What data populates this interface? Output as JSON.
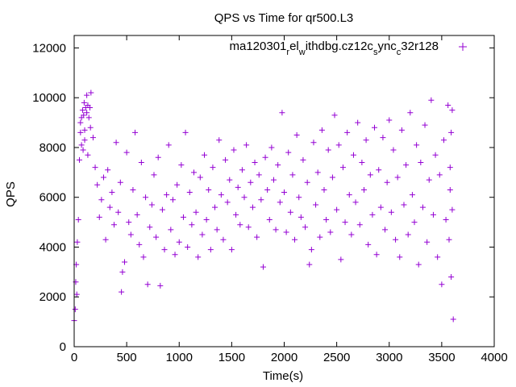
{
  "chart_data": {
    "type": "scatter",
    "title": "QPS vs Time for qr500.L3",
    "xlabel": "Time(s)",
    "ylabel": "QPS",
    "xlim": [
      0,
      4000
    ],
    "ylim": [
      0,
      12500
    ],
    "x_ticks": [
      0,
      500,
      1000,
      1500,
      2000,
      2500,
      3000,
      3500,
      4000
    ],
    "y_ticks": [
      0,
      2000,
      4000,
      6000,
      8000,
      10000,
      12000
    ],
    "grid": false,
    "legend_position": "top-right",
    "legend": {
      "label_base": "ma120301",
      "label_segments": [
        {
          "text": "r",
          "sub": true
        },
        {
          "text": "el",
          "sub": false
        },
        {
          "text": "w",
          "sub": true
        },
        {
          "text": "ithdbg.cz12c",
          "sub": false
        },
        {
          "text": "s",
          "sub": true
        },
        {
          "text": "ync",
          "sub": false
        },
        {
          "text": "c",
          "sub": true
        },
        {
          "text": "32r128",
          "sub": false
        }
      ]
    },
    "series_color": "#9400d3",
    "series": [
      {
        "marker": "+",
        "points": [
          [
            0,
            1050
          ],
          [
            10,
            1500
          ],
          [
            15,
            2600
          ],
          [
            20,
            3300
          ],
          [
            25,
            2100
          ],
          [
            30,
            4200
          ],
          [
            40,
            5100
          ],
          [
            50,
            7500
          ],
          [
            60,
            8600
          ],
          [
            70,
            9200
          ],
          [
            80,
            9500
          ],
          [
            90,
            9300
          ],
          [
            100,
            8700
          ],
          [
            110,
            9600
          ],
          [
            120,
            9400
          ],
          [
            130,
            9700
          ],
          [
            140,
            9200
          ],
          [
            150,
            9600
          ],
          [
            160,
            10200
          ],
          [
            120,
            10100
          ],
          [
            70,
            8100
          ],
          [
            85,
            7900
          ],
          [
            100,
            8300
          ],
          [
            130,
            7700
          ],
          [
            60,
            9000
          ],
          [
            95,
            9800
          ],
          [
            155,
            8800
          ],
          [
            180,
            8400
          ],
          [
            200,
            7200
          ],
          [
            220,
            6500
          ],
          [
            240,
            5200
          ],
          [
            260,
            5900
          ],
          [
            280,
            6800
          ],
          [
            300,
            4300
          ],
          [
            320,
            7100
          ],
          [
            340,
            5600
          ],
          [
            360,
            6200
          ],
          [
            380,
            4900
          ],
          [
            400,
            8200
          ],
          [
            420,
            5400
          ],
          [
            440,
            6600
          ],
          [
            450,
            2200
          ],
          [
            460,
            3000
          ],
          [
            480,
            3400
          ],
          [
            500,
            7800
          ],
          [
            520,
            5000
          ],
          [
            540,
            4500
          ],
          [
            560,
            6300
          ],
          [
            580,
            8600
          ],
          [
            600,
            5300
          ],
          [
            620,
            4100
          ],
          [
            640,
            7400
          ],
          [
            660,
            3600
          ],
          [
            680,
            6000
          ],
          [
            700,
            2500
          ],
          [
            720,
            4800
          ],
          [
            740,
            5700
          ],
          [
            760,
            6900
          ],
          [
            780,
            4400
          ],
          [
            800,
            7600
          ],
          [
            820,
            2450
          ],
          [
            840,
            5500
          ],
          [
            860,
            3900
          ],
          [
            880,
            6100
          ],
          [
            900,
            8100
          ],
          [
            920,
            4700
          ],
          [
            940,
            5900
          ],
          [
            960,
            3700
          ],
          [
            980,
            6500
          ],
          [
            1000,
            4200
          ],
          [
            1020,
            7300
          ],
          [
            1040,
            5200
          ],
          [
            1060,
            8600
          ],
          [
            1080,
            4000
          ],
          [
            1100,
            6200
          ],
          [
            1120,
            4900
          ],
          [
            1140,
            7000
          ],
          [
            1160,
            5400
          ],
          [
            1180,
            3600
          ],
          [
            1200,
            6800
          ],
          [
            1220,
            4500
          ],
          [
            1240,
            7700
          ],
          [
            1260,
            5100
          ],
          [
            1280,
            6300
          ],
          [
            1300,
            3900
          ],
          [
            1320,
            7200
          ],
          [
            1340,
            5600
          ],
          [
            1360,
            4700
          ],
          [
            1380,
            8300
          ],
          [
            1400,
            6100
          ],
          [
            1420,
            4300
          ],
          [
            1440,
            7500
          ],
          [
            1460,
            5800
          ],
          [
            1480,
            6700
          ],
          [
            1500,
            3900
          ],
          [
            1520,
            7900
          ],
          [
            1540,
            5300
          ],
          [
            1560,
            6400
          ],
          [
            1580,
            4900
          ],
          [
            1600,
            7100
          ],
          [
            1620,
            6000
          ],
          [
            1640,
            8100
          ],
          [
            1660,
            4800
          ],
          [
            1680,
            6600
          ],
          [
            1700,
            5600
          ],
          [
            1720,
            7400
          ],
          [
            1740,
            4400
          ],
          [
            1760,
            6900
          ],
          [
            1780,
            5900
          ],
          [
            1800,
            3200
          ],
          [
            1820,
            7600
          ],
          [
            1840,
            6300
          ],
          [
            1860,
            5100
          ],
          [
            1880,
            8000
          ],
          [
            1900,
            6700
          ],
          [
            1920,
            4700
          ],
          [
            1940,
            7300
          ],
          [
            1960,
            5800
          ],
          [
            1980,
            9400
          ],
          [
            2000,
            6200
          ],
          [
            2020,
            4600
          ],
          [
            2040,
            7800
          ],
          [
            2060,
            5400
          ],
          [
            2080,
            6900
          ],
          [
            2100,
            4300
          ],
          [
            2120,
            8500
          ],
          [
            2140,
            6000
          ],
          [
            2160,
            5200
          ],
          [
            2180,
            7500
          ],
          [
            2200,
            4800
          ],
          [
            2220,
            6600
          ],
          [
            2240,
            3300
          ],
          [
            2260,
            3900
          ],
          [
            2280,
            8200
          ],
          [
            2300,
            5700
          ],
          [
            2320,
            7000
          ],
          [
            2340,
            4400
          ],
          [
            2360,
            8700
          ],
          [
            2380,
            6300
          ],
          [
            2400,
            5100
          ],
          [
            2420,
            7900
          ],
          [
            2440,
            4600
          ],
          [
            2460,
            6800
          ],
          [
            2480,
            9300
          ],
          [
            2500,
            5500
          ],
          [
            2520,
            8100
          ],
          [
            2540,
            3500
          ],
          [
            2560,
            7200
          ],
          [
            2580,
            5000
          ],
          [
            2600,
            8600
          ],
          [
            2620,
            6100
          ],
          [
            2640,
            4500
          ],
          [
            2660,
            7700
          ],
          [
            2680,
            5800
          ],
          [
            2700,
            9000
          ],
          [
            2720,
            4900
          ],
          [
            2740,
            7400
          ],
          [
            2760,
            6300
          ],
          [
            2780,
            8300
          ],
          [
            2800,
            4100
          ],
          [
            2820,
            6900
          ],
          [
            2840,
            5300
          ],
          [
            2860,
            8800
          ],
          [
            2880,
            3700
          ],
          [
            2900,
            7100
          ],
          [
            2920,
            5600
          ],
          [
            2940,
            8400
          ],
          [
            2960,
            4700
          ],
          [
            2980,
            6600
          ],
          [
            3000,
            9100
          ],
          [
            3020,
            5400
          ],
          [
            3040,
            7900
          ],
          [
            3060,
            4300
          ],
          [
            3080,
            6800
          ],
          [
            3100,
            3600
          ],
          [
            3120,
            8700
          ],
          [
            3140,
            5700
          ],
          [
            3160,
            7300
          ],
          [
            3180,
            4500
          ],
          [
            3200,
            9400
          ],
          [
            3220,
            6100
          ],
          [
            3240,
            5000
          ],
          [
            3260,
            8100
          ],
          [
            3280,
            3300
          ],
          [
            3300,
            7400
          ],
          [
            3320,
            5600
          ],
          [
            3340,
            8900
          ],
          [
            3360,
            4200
          ],
          [
            3380,
            6700
          ],
          [
            3400,
            9900
          ],
          [
            3420,
            5300
          ],
          [
            3440,
            7700
          ],
          [
            3460,
            3600
          ],
          [
            3480,
            6900
          ],
          [
            3500,
            2500
          ],
          [
            3520,
            8300
          ],
          [
            3540,
            5100
          ],
          [
            3560,
            9700
          ],
          [
            3570,
            4300
          ],
          [
            3580,
            6300
          ],
          [
            3590,
            2800
          ],
          [
            3600,
            9500
          ],
          [
            3610,
            1100
          ],
          [
            3600,
            5500
          ],
          [
            3590,
            8600
          ],
          [
            3580,
            7200
          ]
        ]
      }
    ]
  }
}
